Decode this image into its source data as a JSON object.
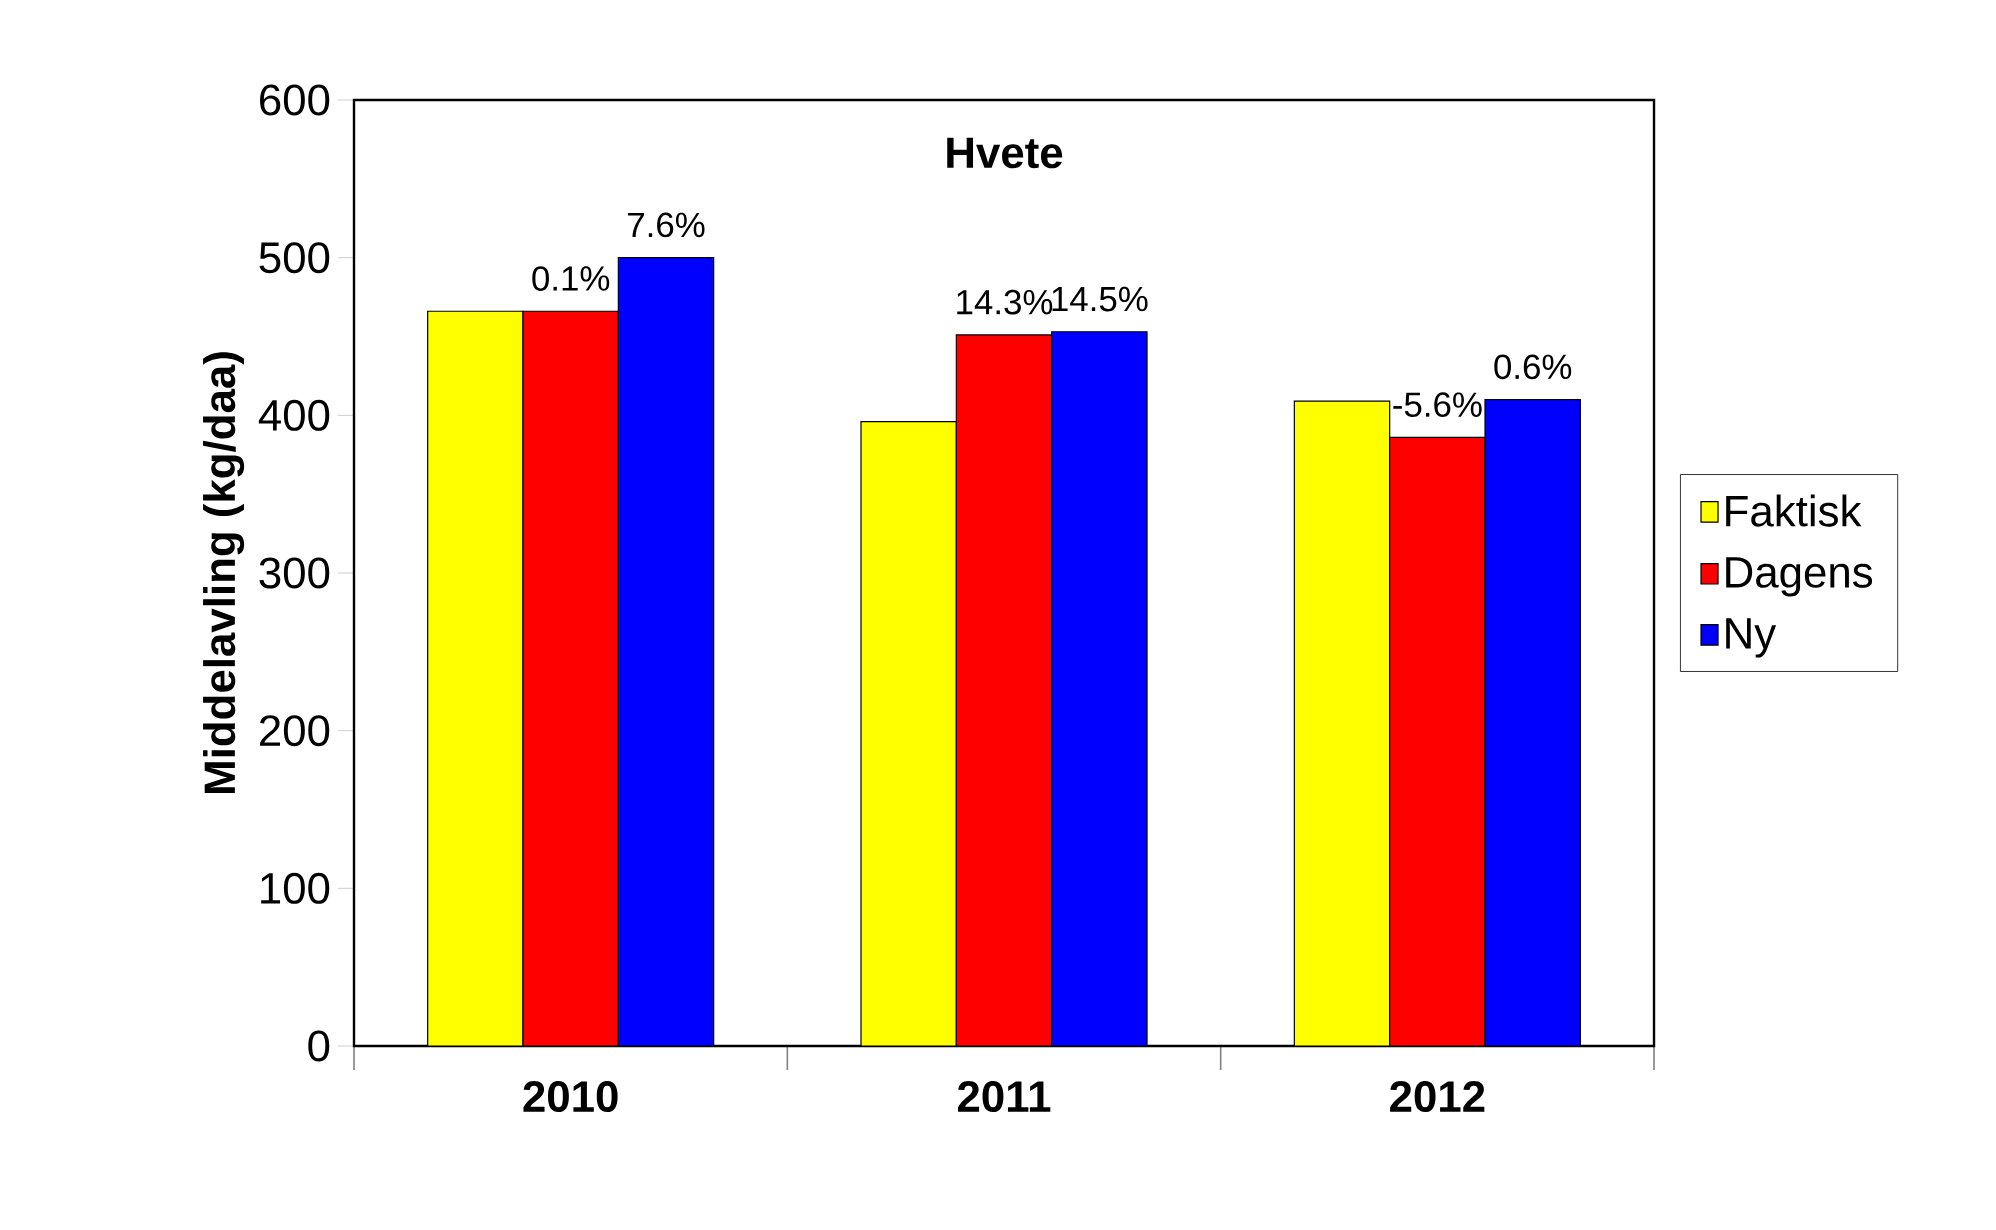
{
  "chart_data": {
    "type": "bar",
    "title": "Hvete",
    "ylabel": "Middelavling (kg/daa)",
    "categories": [
      "2010",
      "2011",
      "2012"
    ],
    "series": [
      {
        "name": "Faktisk",
        "color": "#ffff00",
        "values": [
          466,
          396,
          409
        ]
      },
      {
        "name": "Dagens",
        "color": "#ff0000",
        "values": [
          466,
          451,
          386
        ]
      },
      {
        "name": "Ny",
        "color": "#0000ff",
        "values": [
          500,
          453,
          410
        ]
      }
    ],
    "annotations": [
      "0.1%",
      "7.6%",
      "14.3%",
      "14.5%",
      "-5.6%",
      "0.6%"
    ],
    "ylim": [
      0,
      600
    ],
    "yticks": [
      0,
      100,
      200,
      300,
      400,
      500,
      600
    ],
    "grid": false,
    "legend": "right"
  }
}
